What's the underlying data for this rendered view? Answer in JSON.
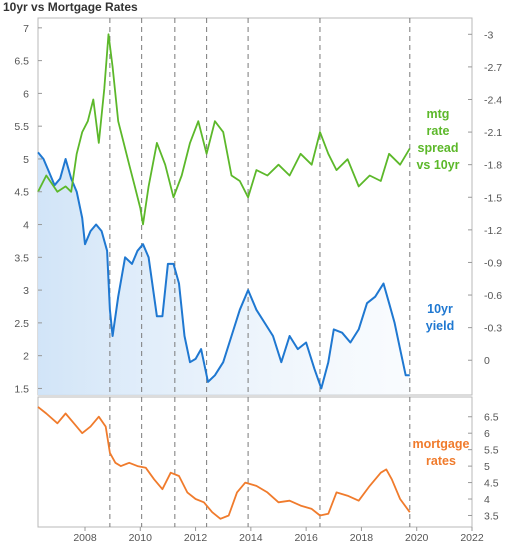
{
  "title": "10yr vs Mortgage Rates",
  "chart_data": [
    {
      "type": "line",
      "panel": "top",
      "title": "10yr vs Mortgage Rates",
      "x_ticks": [
        "2008",
        "2010",
        "2012",
        "2014",
        "2016",
        "2018",
        "2020",
        "2022"
      ],
      "x_range": [
        2006.3,
        2022.0
      ],
      "grid": false,
      "event_lines_x": [
        2008.9,
        2010.05,
        2011.25,
        2012.4,
        2013.9,
        2016.5,
        2019.75
      ],
      "left_axis": {
        "ylim": [
          1.4,
          7.15
        ],
        "ticks": [
          "1.5",
          "2",
          "2.5",
          "3",
          "3.5",
          "4",
          "4.5",
          "5",
          "5.5",
          "6",
          "6.5",
          "7"
        ]
      },
      "right_axis": {
        "ylim": [
          -0.32,
          3.15
        ],
        "ticks": [
          "0",
          "-0.3",
          "-0.6",
          "-0.9",
          "-1.2",
          "-1.5",
          "-1.8",
          "-2.1",
          "-2.4",
          "-2.7",
          "-3"
        ]
      },
      "series": [
        {
          "name": "10yr yield",
          "label_lines": [
            "10yr",
            "yield"
          ],
          "axis": "left",
          "color": "#1f78d1",
          "area_fill": true,
          "x": [
            2006.3,
            2006.5,
            2006.7,
            2006.9,
            2007.1,
            2007.3,
            2007.5,
            2007.7,
            2007.9,
            2008.0,
            2008.2,
            2008.4,
            2008.6,
            2008.8,
            2008.9,
            2009.0,
            2009.2,
            2009.45,
            2009.7,
            2009.9,
            2010.1,
            2010.3,
            2010.6,
            2010.8,
            2011.0,
            2011.2,
            2011.4,
            2011.6,
            2011.8,
            2012.0,
            2012.2,
            2012.45,
            2012.7,
            2013.0,
            2013.3,
            2013.6,
            2013.9,
            2014.2,
            2014.5,
            2014.8,
            2015.1,
            2015.4,
            2015.7,
            2016.0,
            2016.3,
            2016.55,
            2016.8,
            2017.0,
            2017.3,
            2017.6,
            2017.9,
            2018.2,
            2018.5,
            2018.8,
            2019.0,
            2019.2,
            2019.4,
            2019.6,
            2019.75
          ],
          "y": [
            5.1,
            5.0,
            4.8,
            4.6,
            4.7,
            5.0,
            4.7,
            4.5,
            4.1,
            3.7,
            3.9,
            4.0,
            3.9,
            3.6,
            2.7,
            2.3,
            2.9,
            3.5,
            3.4,
            3.6,
            3.7,
            3.5,
            2.6,
            2.6,
            3.4,
            3.4,
            3.1,
            2.3,
            1.9,
            1.95,
            2.1,
            1.6,
            1.7,
            1.9,
            2.3,
            2.7,
            3.0,
            2.7,
            2.5,
            2.3,
            1.9,
            2.3,
            2.1,
            2.2,
            1.8,
            1.5,
            1.9,
            2.4,
            2.35,
            2.2,
            2.4,
            2.8,
            2.9,
            3.1,
            2.8,
            2.5,
            2.1,
            1.7,
            1.7
          ]
        },
        {
          "name": "mtg rate spread vs 10yr",
          "label_lines": [
            "mtg",
            "rate",
            "spread",
            "vs 10yr"
          ],
          "axis": "right",
          "color": "#5cb82a",
          "x": [
            2006.3,
            2006.6,
            2007.0,
            2007.3,
            2007.5,
            2007.7,
            2007.9,
            2008.1,
            2008.3,
            2008.5,
            2008.7,
            2008.85,
            2009.0,
            2009.2,
            2009.4,
            2009.6,
            2009.8,
            2010.0,
            2010.1,
            2010.3,
            2010.6,
            2010.9,
            2011.2,
            2011.5,
            2011.8,
            2012.1,
            2012.4,
            2012.7,
            2013.0,
            2013.3,
            2013.6,
            2013.9,
            2014.2,
            2014.6,
            2015.0,
            2015.4,
            2015.8,
            2016.2,
            2016.5,
            2016.8,
            2017.1,
            2017.5,
            2017.9,
            2018.3,
            2018.7,
            2019.0,
            2019.4,
            2019.75
          ],
          "y": [
            1.55,
            1.7,
            1.55,
            1.6,
            1.55,
            1.9,
            2.1,
            2.2,
            2.4,
            2.0,
            2.5,
            3.0,
            2.7,
            2.2,
            2.0,
            1.8,
            1.6,
            1.4,
            1.25,
            1.6,
            2.0,
            1.8,
            1.5,
            1.7,
            2.0,
            2.2,
            1.9,
            2.2,
            2.1,
            1.7,
            1.65,
            1.5,
            1.75,
            1.7,
            1.8,
            1.7,
            1.9,
            1.8,
            2.1,
            1.9,
            1.75,
            1.85,
            1.6,
            1.7,
            1.65,
            1.9,
            1.8,
            1.95
          ]
        }
      ]
    },
    {
      "type": "line",
      "panel": "bottom",
      "x_ticks": [
        "2008",
        "2010",
        "2012",
        "2014",
        "2016",
        "2018",
        "2020",
        "2022"
      ],
      "x_range": [
        2006.3,
        2022.0
      ],
      "grid": false,
      "event_lines_x": [
        2008.9,
        2010.05,
        2011.25,
        2012.4,
        2013.9,
        2016.5,
        2019.75
      ],
      "right_axis": {
        "ylim": [
          3.15,
          7.1
        ],
        "ticks": [
          "3.5",
          "4",
          "4.5",
          "5",
          "5.5",
          "6",
          "6.5"
        ]
      },
      "series": [
        {
          "name": "mortgage rates",
          "label_lines": [
            "mortgage",
            "rates"
          ],
          "axis": "right",
          "color": "#f07b2c",
          "x": [
            2006.3,
            2006.6,
            2007.0,
            2007.3,
            2007.6,
            2007.9,
            2008.2,
            2008.5,
            2008.75,
            2008.9,
            2009.1,
            2009.3,
            2009.6,
            2009.9,
            2010.2,
            2010.5,
            2010.8,
            2011.1,
            2011.4,
            2011.7,
            2012.0,
            2012.3,
            2012.6,
            2012.9,
            2013.2,
            2013.5,
            2013.8,
            2014.2,
            2014.6,
            2015.0,
            2015.4,
            2015.8,
            2016.2,
            2016.5,
            2016.8,
            2017.1,
            2017.5,
            2017.9,
            2018.3,
            2018.7,
            2018.9,
            2019.1,
            2019.4,
            2019.75
          ],
          "y": [
            6.8,
            6.6,
            6.3,
            6.6,
            6.3,
            6.0,
            6.2,
            6.5,
            6.2,
            5.4,
            5.1,
            5.0,
            5.1,
            5.0,
            4.95,
            4.6,
            4.3,
            4.8,
            4.7,
            4.2,
            4.0,
            3.9,
            3.6,
            3.4,
            3.5,
            4.2,
            4.5,
            4.4,
            4.2,
            3.9,
            3.95,
            3.8,
            3.7,
            3.5,
            3.55,
            4.2,
            4.1,
            3.95,
            4.4,
            4.8,
            4.9,
            4.6,
            4.0,
            3.6
          ]
        }
      ]
    }
  ]
}
